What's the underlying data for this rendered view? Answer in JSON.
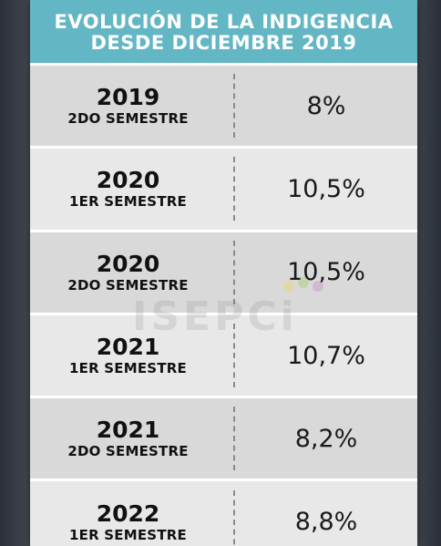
{
  "header": {
    "line1": "EVOLUCIÓN DE LA INDIGENCIA",
    "line2": "DESDE DICIEMBRE 2019"
  },
  "rows": [
    {
      "year": "2019",
      "semester": "2DO SEMESTRE",
      "value": "8%"
    },
    {
      "year": "2020",
      "semester": "1ER SEMESTRE",
      "value": "10,5%"
    },
    {
      "year": "2020",
      "semester": "2DO SEMESTRE",
      "value": "10,5%"
    },
    {
      "year": "2021",
      "semester": "1ER SEMESTRE",
      "value": "10,7%"
    },
    {
      "year": "2021",
      "semester": "2DO SEMESTRE",
      "value": "8,2%"
    },
    {
      "year": "2022",
      "semester": "1ER SEMESTRE",
      "value": "8,8%"
    }
  ],
  "watermark": "ISEPCi",
  "colors": {
    "header_bg": "#63b6c3",
    "row_dark": "#d9d9d9",
    "row_light": "#e8e8e8"
  }
}
